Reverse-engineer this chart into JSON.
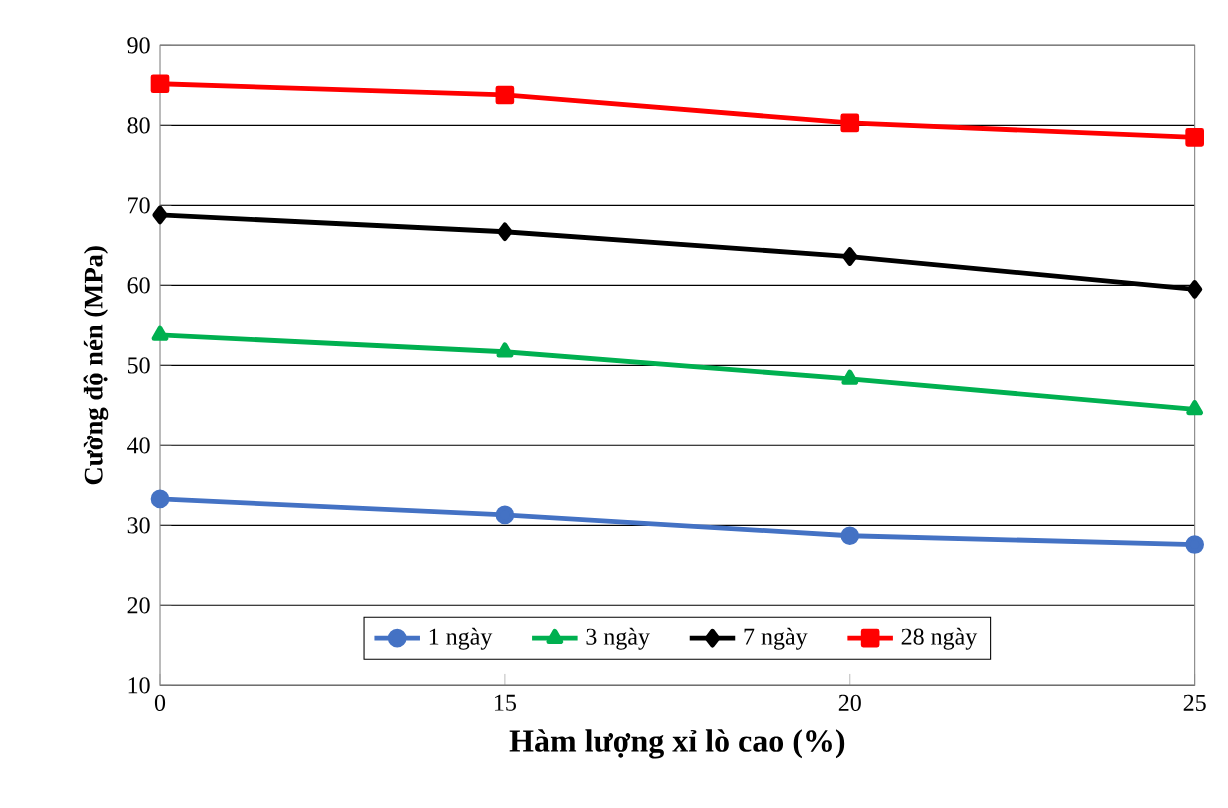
{
  "chart_data": {
    "type": "line",
    "xlabel": "Hàm lượng xỉ lò cao (%)",
    "ylabel": "Cường độ nén (MPa)",
    "categories": [
      "0",
      "15",
      "20",
      "25"
    ],
    "ylim": [
      10,
      90
    ],
    "yticks": [
      10,
      20,
      30,
      40,
      50,
      60,
      70,
      80,
      90
    ],
    "grid": "y",
    "legend": "bottom",
    "line_style": "solid",
    "series": [
      {
        "name": "1 ngày",
        "color": "#4472c4",
        "marker": "circle",
        "values": [
          33.3,
          31.3,
          28.7,
          27.6
        ]
      },
      {
        "name": "3 ngày",
        "color": "#00b050",
        "marker": "triangle",
        "values": [
          53.8,
          51.7,
          48.3,
          44.5
        ]
      },
      {
        "name": "7 ngày",
        "color": "#000000",
        "marker": "diamond",
        "values": [
          68.8,
          66.7,
          63.6,
          59.5
        ]
      },
      {
        "name": "28 ngày",
        "color": "#ff0000",
        "marker": "square",
        "values": [
          85.2,
          83.8,
          80.3,
          78.5
        ]
      }
    ]
  }
}
